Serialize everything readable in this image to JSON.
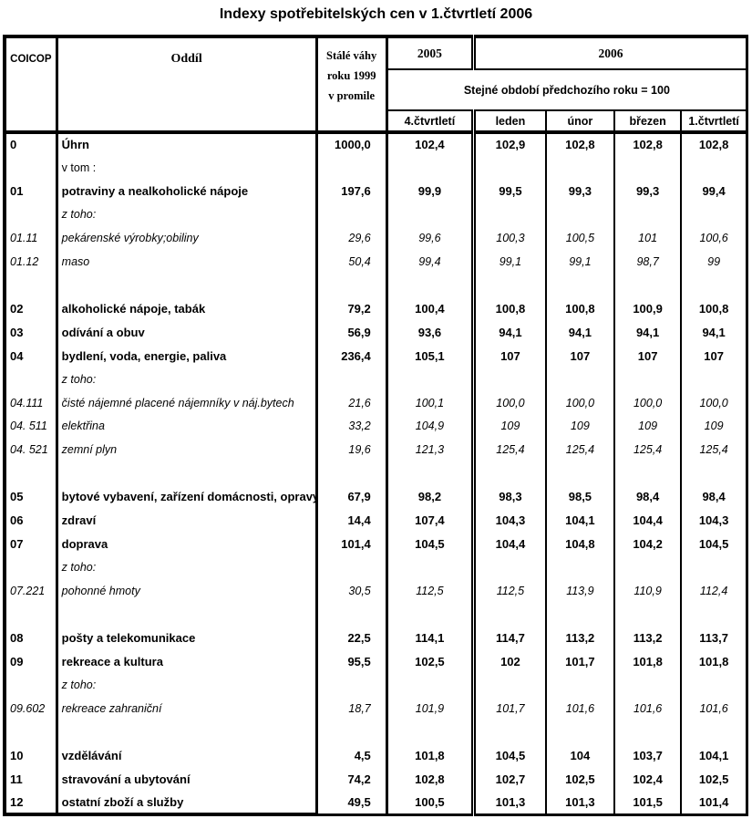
{
  "title": "Indexy spotřebitelských cen v 1.čtvrtletí 2006",
  "table": {
    "header": {
      "coicop": "COICOP",
      "oddil": "Oddíl",
      "vahy_lines": [
        "Stálé váhy",
        "roku 1999",
        "v promile"
      ],
      "year_2005": "2005",
      "year_2006": "2006",
      "base_note": "Stejné období předchozího roku = 100",
      "period_cols": [
        "4.čtvrtletí",
        "leden",
        "únor",
        "březen",
        "1.čtvrtletí"
      ]
    },
    "rows": [
      {
        "code": "0",
        "name": "Úhrn",
        "weight": "1000,0",
        "values": [
          "102,4",
          "102,9",
          "102,8",
          "102,8",
          "102,8"
        ],
        "style": "main"
      },
      {
        "code": "",
        "name": "v tom :",
        "weight": "",
        "values": [
          "",
          "",
          "",
          "",
          ""
        ],
        "style": "plain"
      },
      {
        "code": "01",
        "name": "potraviny a nealkoholické nápoje",
        "weight": "197,6",
        "values": [
          "99,9",
          "99,5",
          "99,3",
          "99,3",
          "99,4"
        ],
        "style": "main"
      },
      {
        "code": "",
        "name": "z toho:",
        "weight": "",
        "values": [
          "",
          "",
          "",
          "",
          ""
        ],
        "style": "sub"
      },
      {
        "code": "01.11",
        "name": "pekárenské výrobky;obiliny",
        "weight": "29,6",
        "values": [
          "99,6",
          "100,3",
          "100,5",
          "101",
          "100,6"
        ],
        "style": "sub"
      },
      {
        "code": "01.12",
        "name": "maso",
        "weight": "50,4",
        "values": [
          "99,4",
          "99,1",
          "99,1",
          "98,7",
          "99"
        ],
        "style": "sub"
      },
      {
        "code": "",
        "name": "",
        "weight": "",
        "values": [
          "",
          "",
          "",
          "",
          ""
        ],
        "style": "spacer"
      },
      {
        "code": "02",
        "name": "alkoholické nápoje, tabák",
        "weight": "79,2",
        "values": [
          "100,4",
          "100,8",
          "100,8",
          "100,9",
          "100,8"
        ],
        "style": "main"
      },
      {
        "code": "03",
        "name": "odívání a obuv",
        "weight": "56,9",
        "values": [
          "93,6",
          "94,1",
          "94,1",
          "94,1",
          "94,1"
        ],
        "style": "main"
      },
      {
        "code": "04",
        "name": "bydlení, voda, energie, paliva",
        "weight": "236,4",
        "values": [
          "105,1",
          "107",
          "107",
          "107",
          "107"
        ],
        "style": "main"
      },
      {
        "code": "",
        "name": "z toho:",
        "weight": "",
        "values": [
          "",
          "",
          "",
          "",
          ""
        ],
        "style": "sub"
      },
      {
        "code": "04.111",
        "name": "čisté nájemné placené nájemníky v náj.bytech",
        "weight": "21,6",
        "values": [
          "100,1",
          "100,0",
          "100,0",
          "100,0",
          "100,0"
        ],
        "style": "sub"
      },
      {
        "code": "04. 511",
        "name": "elektřina",
        "weight": "33,2",
        "values": [
          "104,9",
          "109",
          "109",
          "109",
          "109"
        ],
        "style": "sub"
      },
      {
        "code": "04. 521",
        "name": "zemní plyn",
        "weight": "19,6",
        "values": [
          "121,3",
          "125,4",
          "125,4",
          "125,4",
          "125,4"
        ],
        "style": "sub"
      },
      {
        "code": "",
        "name": "",
        "weight": "",
        "values": [
          "",
          "",
          "",
          "",
          ""
        ],
        "style": "spacer"
      },
      {
        "code": "05",
        "name": "bytové vybavení, zařízení domácnosti, opravy",
        "weight": "67,9",
        "values": [
          "98,2",
          "98,3",
          "98,5",
          "98,4",
          "98,4"
        ],
        "style": "main"
      },
      {
        "code": "06",
        "name": "zdraví",
        "weight": "14,4",
        "values": [
          "107,4",
          "104,3",
          "104,1",
          "104,4",
          "104,3"
        ],
        "style": "main"
      },
      {
        "code": "07",
        "name": "doprava",
        "weight": "101,4",
        "values": [
          "104,5",
          "104,4",
          "104,8",
          "104,2",
          "104,5"
        ],
        "style": "main"
      },
      {
        "code": "",
        "name": "z toho:",
        "weight": "",
        "values": [
          "",
          "",
          "",
          "",
          ""
        ],
        "style": "sub"
      },
      {
        "code": "07.221",
        "name": "pohonné hmoty",
        "weight": "30,5",
        "values": [
          "112,5",
          "112,5",
          "113,9",
          "110,9",
          "112,4"
        ],
        "style": "sub"
      },
      {
        "code": "",
        "name": "",
        "weight": "",
        "values": [
          "",
          "",
          "",
          "",
          ""
        ],
        "style": "spacer"
      },
      {
        "code": "08",
        "name": "pošty a telekomunikace",
        "weight": "22,5",
        "values": [
          "114,1",
          "114,7",
          "113,2",
          "113,2",
          "113,7"
        ],
        "style": "main"
      },
      {
        "code": "09",
        "name": "rekreace a kultura",
        "weight": "95,5",
        "values": [
          "102,5",
          "102",
          "101,7",
          "101,8",
          "101,8"
        ],
        "style": "main"
      },
      {
        "code": "",
        "name": "z toho:",
        "weight": "",
        "values": [
          "",
          "",
          "",
          "",
          ""
        ],
        "style": "sub"
      },
      {
        "code": "09.602",
        "name": "rekreace zahraniční",
        "weight": "18,7",
        "values": [
          "101,9",
          "101,7",
          "101,6",
          "101,6",
          "101,6"
        ],
        "style": "sub"
      },
      {
        "code": "",
        "name": "",
        "weight": "",
        "values": [
          "",
          "",
          "",
          "",
          ""
        ],
        "style": "spacer"
      },
      {
        "code": "10",
        "name": "vzdělávání",
        "weight": "4,5",
        "values": [
          "101,8",
          "104,5",
          "104",
          "103,7",
          "104,1"
        ],
        "style": "main"
      },
      {
        "code": "11",
        "name": "stravování a ubytování",
        "weight": "74,2",
        "values": [
          "102,8",
          "102,7",
          "102,5",
          "102,4",
          "102,5"
        ],
        "style": "main"
      },
      {
        "code": "12",
        "name": "ostatní zboží a služby",
        "weight": "49,5",
        "values": [
          "100,5",
          "101,3",
          "101,3",
          "101,5",
          "101,4"
        ],
        "style": "main"
      }
    ]
  }
}
